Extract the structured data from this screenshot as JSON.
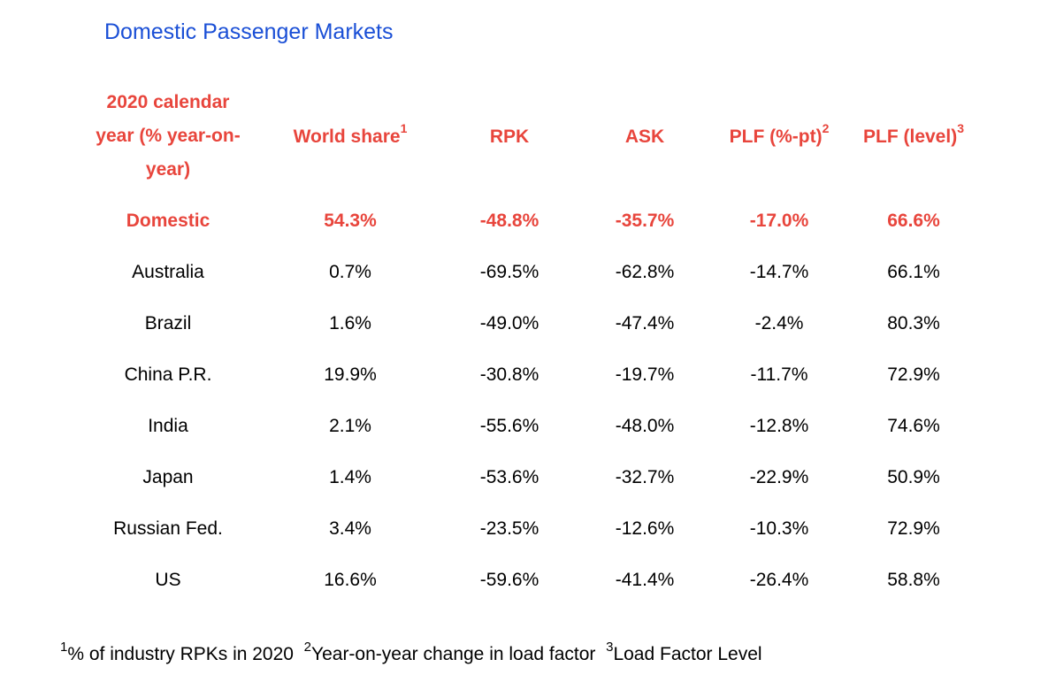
{
  "title": "Domestic Passenger Markets",
  "chart_data": {
    "type": "table",
    "columns": [
      {
        "label_lines": [
          "2020 calendar",
          "year (% year-on-",
          "year)"
        ],
        "sup": ""
      },
      {
        "label": "World share",
        "sup": "1"
      },
      {
        "label": "RPK",
        "sup": ""
      },
      {
        "label": "ASK",
        "sup": ""
      },
      {
        "label": "PLF (%-pt)",
        "sup": "2"
      },
      {
        "label": "PLF (level)",
        "sup": "3"
      }
    ],
    "rows": [
      {
        "market": "Domestic",
        "world_share": "54.3%",
        "rpk": "-48.8%",
        "ask": "-35.7%",
        "plf_pt": "-17.0%",
        "plf_level": "66.6%",
        "highlight": true
      },
      {
        "market": "Australia",
        "world_share": "0.7%",
        "rpk": "-69.5%",
        "ask": "-62.8%",
        "plf_pt": "-14.7%",
        "plf_level": "66.1%"
      },
      {
        "market": "Brazil",
        "world_share": "1.6%",
        "rpk": "-49.0%",
        "ask": "-47.4%",
        "plf_pt": "-2.4%",
        "plf_level": "80.3%"
      },
      {
        "market": "China P.R.",
        "world_share": "19.9%",
        "rpk": "-30.8%",
        "ask": "-19.7%",
        "plf_pt": "-11.7%",
        "plf_level": "72.9%"
      },
      {
        "market": "India",
        "world_share": "2.1%",
        "rpk": "-55.6%",
        "ask": "-48.0%",
        "plf_pt": "-12.8%",
        "plf_level": "74.6%"
      },
      {
        "market": "Japan",
        "world_share": "1.4%",
        "rpk": "-53.6%",
        "ask": "-32.7%",
        "plf_pt": "-22.9%",
        "plf_level": "50.9%"
      },
      {
        "market": "Russian Fed.",
        "world_share": "3.4%",
        "rpk": "-23.5%",
        "ask": "-12.6%",
        "plf_pt": "-10.3%",
        "plf_level": "72.9%"
      },
      {
        "market": "US",
        "world_share": "16.6%",
        "rpk": "-59.6%",
        "ask": "-41.4%",
        "plf_pt": "-26.4%",
        "plf_level": "58.8%"
      }
    ]
  },
  "footnotes": [
    {
      "sup": "1",
      "text": "% of industry RPKs in 2020"
    },
    {
      "sup": "2",
      "text": "Year-on-year change in load factor"
    },
    {
      "sup": "3",
      "text": "Load Factor Level"
    }
  ],
  "colors": {
    "title": "#1a4fd6",
    "header": "#e8453c",
    "highlight_row": "#e8453c",
    "body_text": "#000000"
  }
}
